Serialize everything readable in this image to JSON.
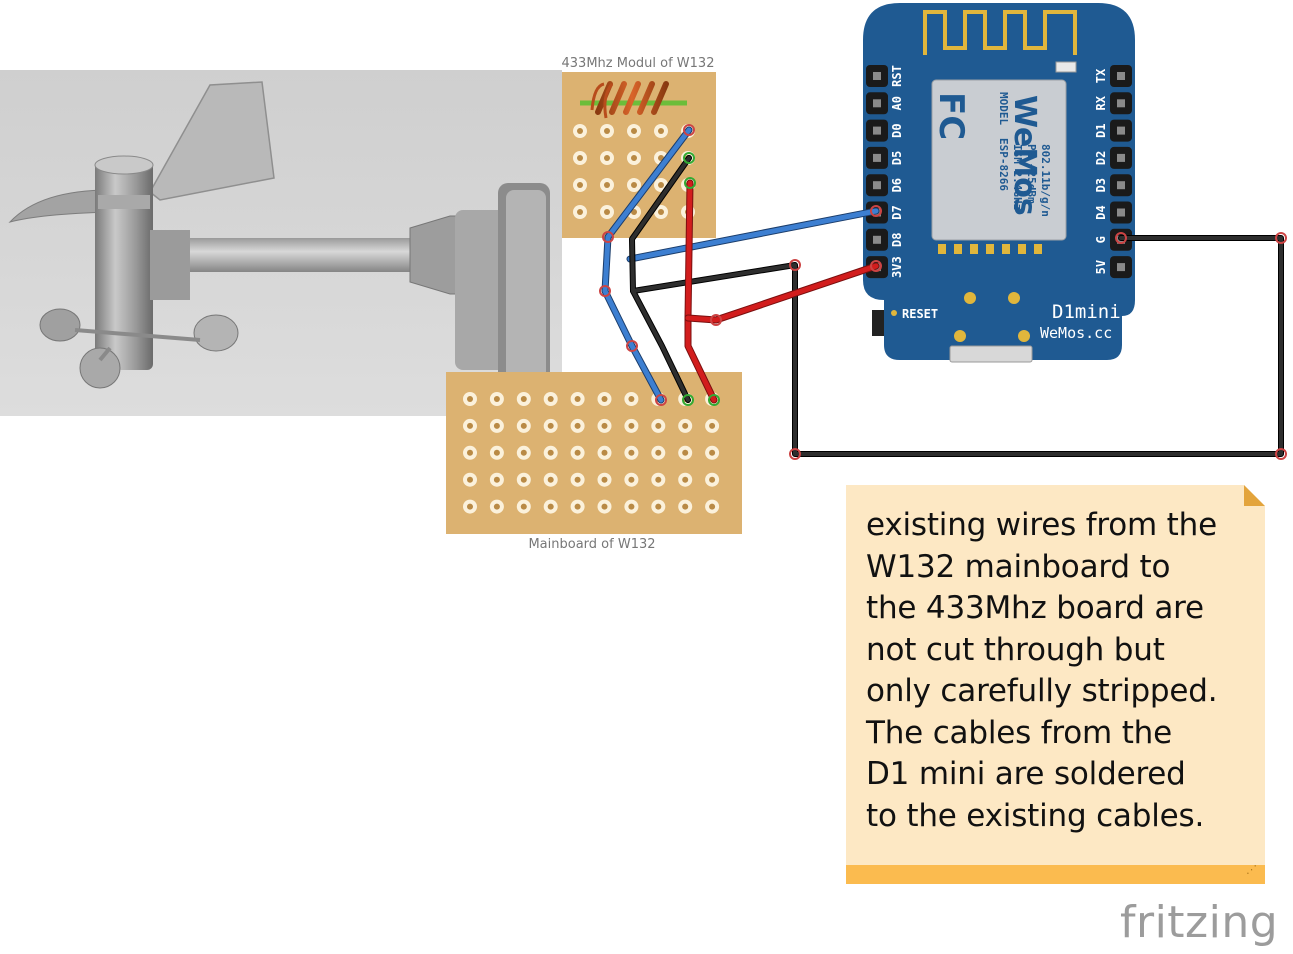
{
  "labels": {
    "radio_module": "433Mhz Modul of W132",
    "mainboard": "Mainboard of W132"
  },
  "d1mini": {
    "left_pins": [
      "RST",
      "A0",
      "D0",
      "D5",
      "D6",
      "D7",
      "D8",
      "3V3"
    ],
    "right_pins": [
      "TX",
      "RX",
      "D1",
      "D2",
      "D3",
      "D4",
      "G",
      "5V"
    ],
    "reset_label": "RESET",
    "board_label": "D1mini",
    "website": "WeMos.cc",
    "chip_logo": "WeMos",
    "chip_text": [
      "MODEL",
      "ESP-8266",
      "ISM 2.4GHz",
      "PA +25dBm",
      "802.11b/g/n"
    ],
    "fcc": "FC"
  },
  "note": {
    "text": "existing wires from the\nW132 mainboard to\nthe 433Mhz board are\nnot cut through but\nonly carefully stripped.\nThe cables from the\nD1 mini are soldered\nto the existing cables."
  },
  "brand": "fritzing",
  "colors": {
    "wire_blue": "#3d7fd1",
    "wire_black": "#1e1e1e",
    "wire_red": "#d21d1d",
    "perfboard": "#dcb271",
    "pcb_blue": "#1f5a92",
    "note_bg": "#fde8c4",
    "note_bar": "#fbbb4f"
  }
}
